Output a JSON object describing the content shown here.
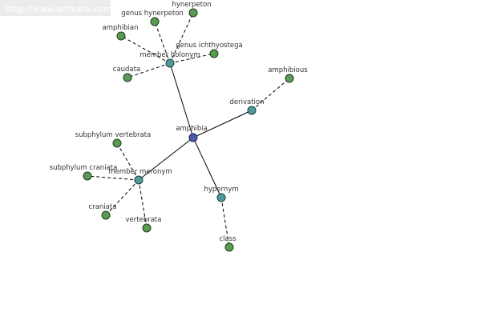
{
  "watermark": "http://www.artikata.com",
  "nodes": [
    {
      "label": "amphibia"
    },
    {
      "label": "member holonym"
    },
    {
      "label": "derivation"
    },
    {
      "label": "member meronym"
    },
    {
      "label": "hypernym"
    },
    {
      "label": "amphibian"
    },
    {
      "label": "genus hynerpeton"
    },
    {
      "label": "hynerpeton"
    },
    {
      "label": "genus ichthyostega"
    },
    {
      "label": "caudata"
    },
    {
      "label": "amphibious"
    },
    {
      "label": "subphylum vertebrata"
    },
    {
      "label": "subphylum craniata"
    },
    {
      "label": "craniata"
    },
    {
      "label": "vertebrata"
    },
    {
      "label": "class"
    }
  ]
}
